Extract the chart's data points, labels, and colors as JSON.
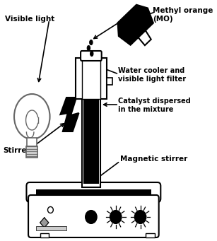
{
  "labels": {
    "visible_light": "Visible light",
    "methyl_orange": "Methyl orange\n(MO)",
    "water_cooler": "Water cooler and\nvisible light filter",
    "catalyst": "Catalyst dispersed\nin the mixture",
    "stirrer": "Stirrer",
    "magnetic_stirrer": "Magnetic stirrer"
  },
  "colors": {
    "black": "#000000",
    "white": "#ffffff",
    "light_gray": "#cccccc",
    "dark_gray": "#666666",
    "medium_gray": "#999999"
  }
}
